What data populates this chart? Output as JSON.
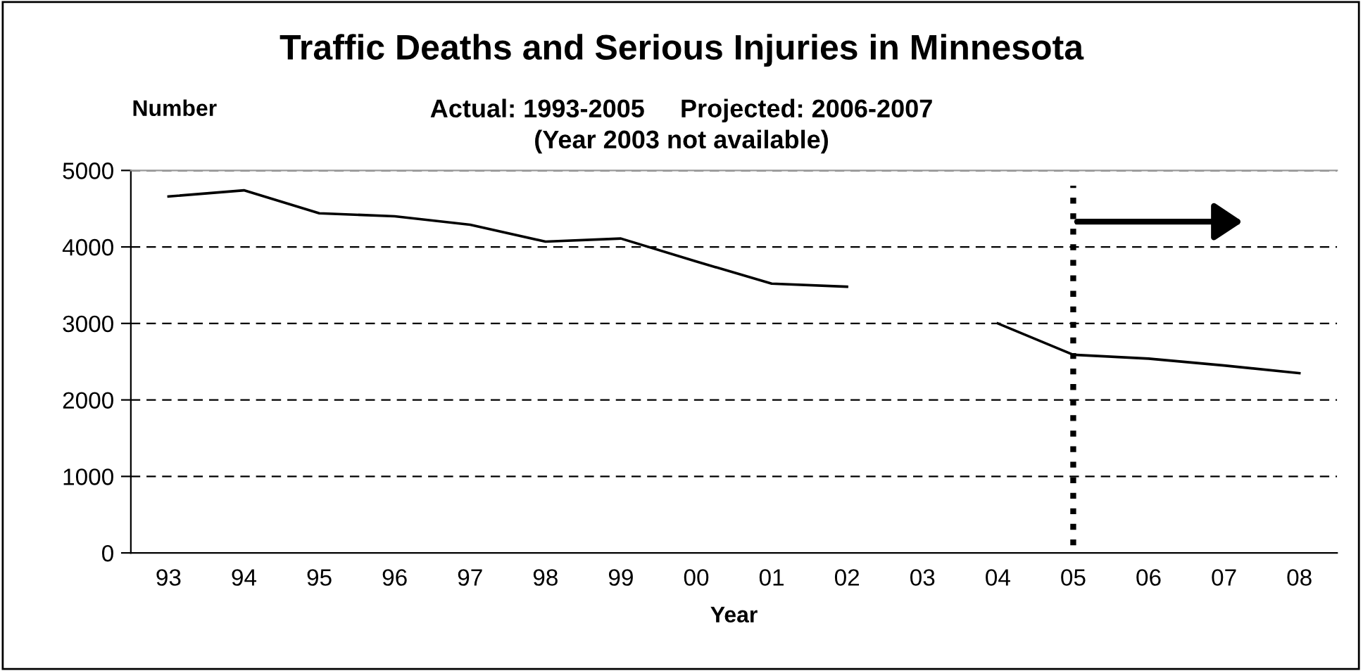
{
  "chart_data": {
    "type": "line",
    "title": "Traffic Deaths and Serious Injuries in Minnesota",
    "subtitle": "Actual: 1993-2005     Projected: 2006-2007\n(Year 2003 not available)",
    "xlabel": "Year",
    "ylabel": "Number",
    "categories": [
      "93",
      "94",
      "95",
      "96",
      "97",
      "98",
      "99",
      "00",
      "01",
      "02",
      "03",
      "04",
      "05",
      "06",
      "07",
      "08"
    ],
    "series": [
      {
        "color": "#000000",
        "values": [
          4660,
          4740,
          4440,
          4400,
          4290,
          4070,
          4110,
          3810,
          3520,
          3480,
          null,
          3000,
          2590,
          2540,
          2450,
          2350
        ]
      }
    ],
    "ylim": [
      0,
      5000
    ],
    "yticks": [
      0,
      1000,
      2000,
      3000,
      4000,
      5000
    ],
    "grid": "y",
    "legend": false,
    "marker": "none",
    "line_style": "solid",
    "ref_lines": [
      {
        "axis": "x",
        "value": "05",
        "color": "#000000",
        "line_style": "dotted"
      }
    ]
  }
}
